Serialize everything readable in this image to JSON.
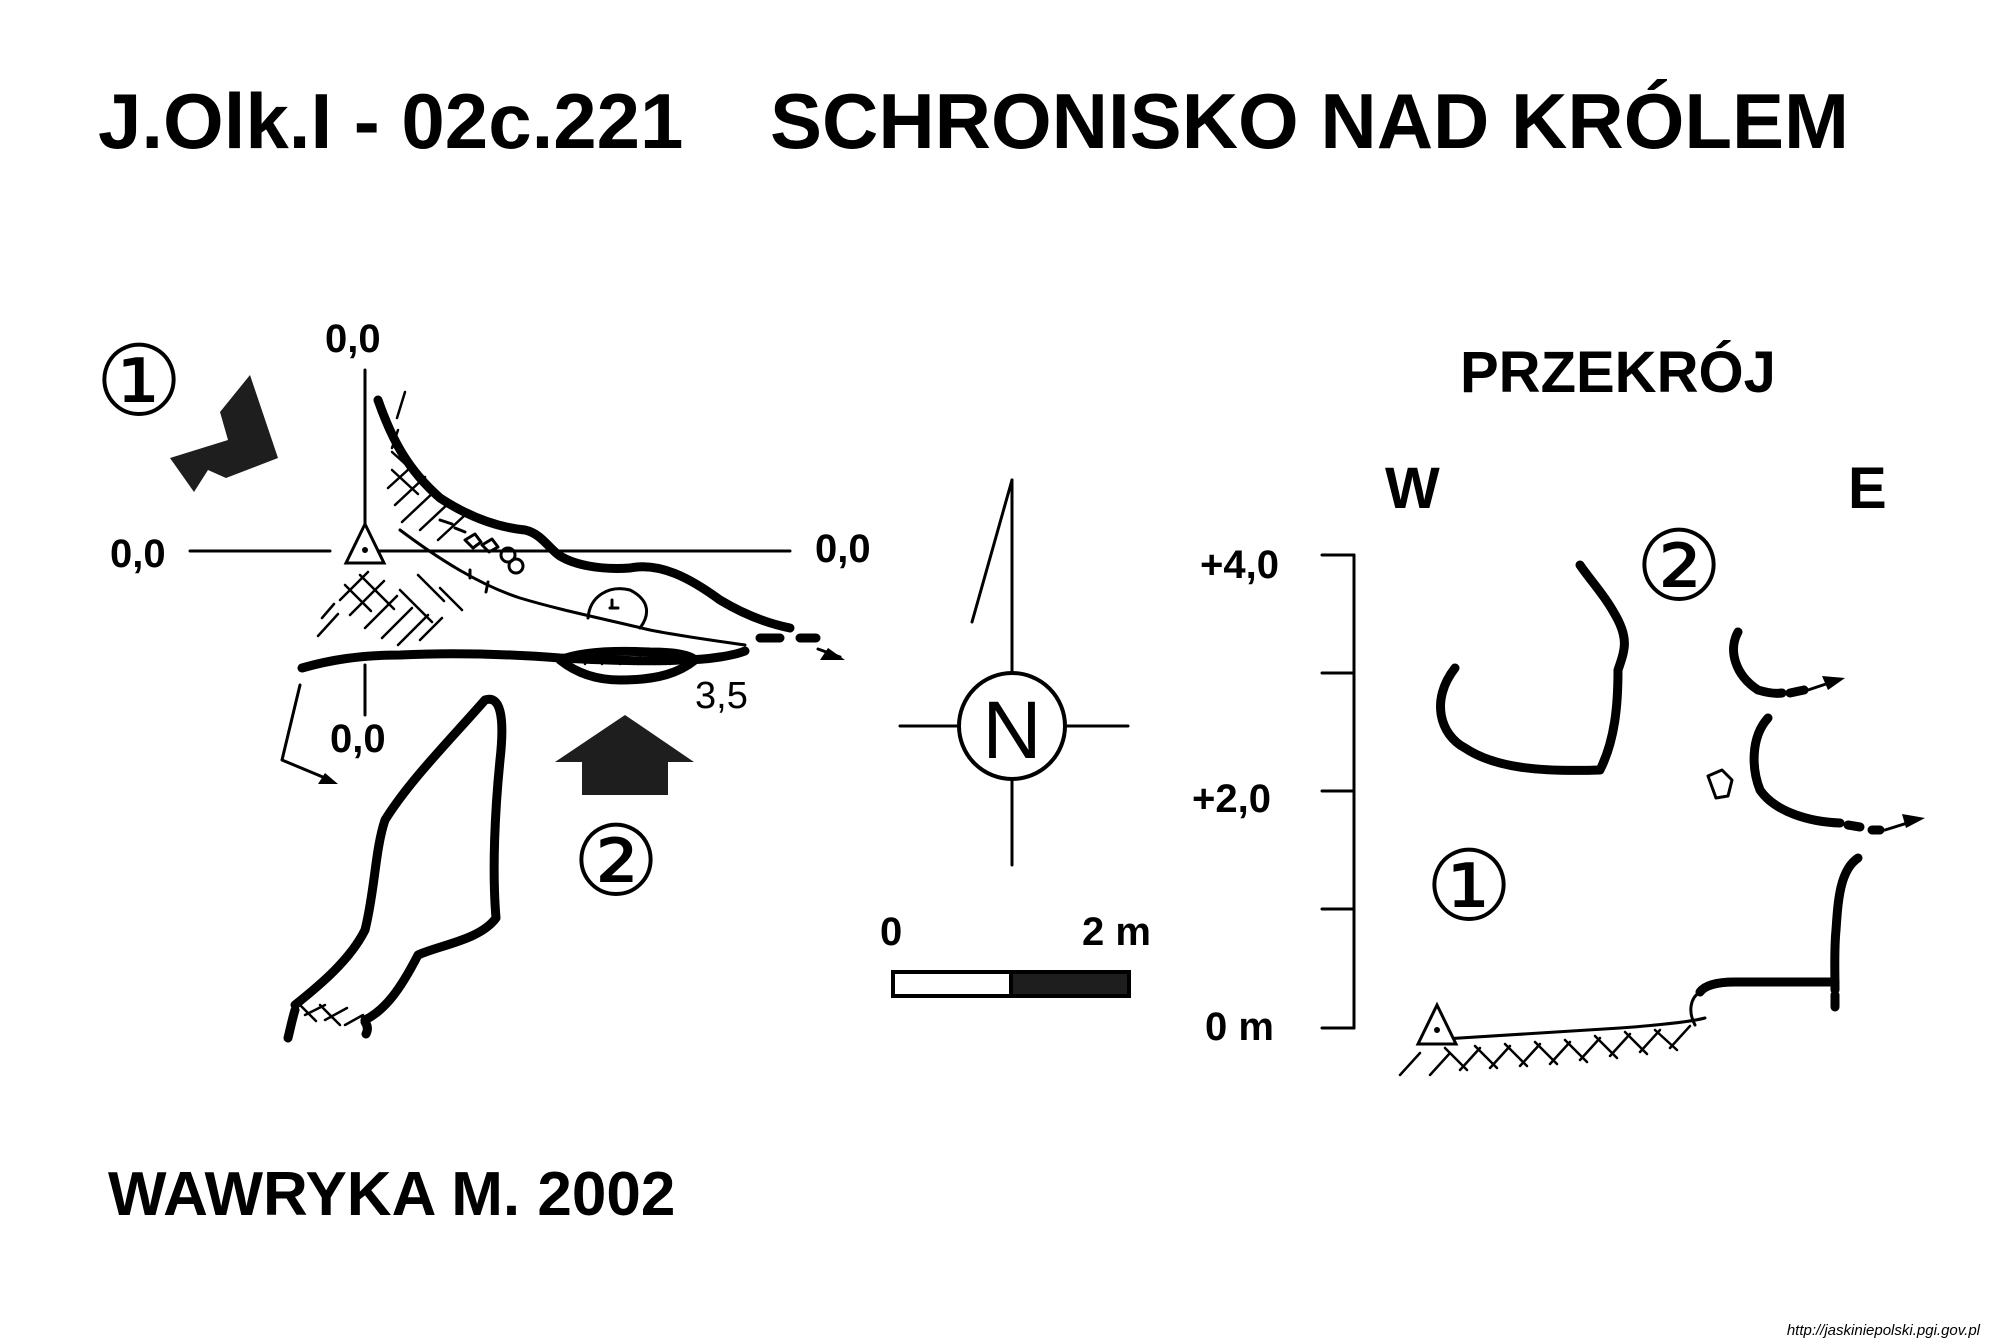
{
  "title": {
    "code": "J.Olk.I - 02c.221",
    "name": "SCHRONISKO NAD KRÓLEM"
  },
  "plan": {
    "datum_top": "0,0",
    "datum_left": "0,0",
    "datum_right": "0,0",
    "datum_bottom": "0,0",
    "depth_label": "3,5",
    "entrance_1_marker": "①",
    "entrance_2_marker": "②"
  },
  "north_arrow": {
    "letter": "N"
  },
  "scale_bar": {
    "start_label": "0",
    "end_label": "2 m"
  },
  "section": {
    "title": "PRZEKRÓJ",
    "west_label": "W",
    "east_label": "E",
    "entrance_1_marker": "①",
    "entrance_2_marker": "②",
    "axis_ticks": [
      "+4,0",
      "+2,0",
      "0 m"
    ]
  },
  "author": "WAWRYKA M. 2002",
  "source_url": "http://jaskiniepolski.pgi.gov.pl",
  "colors": {
    "ink": "#000000",
    "paper": "#ffffff"
  }
}
